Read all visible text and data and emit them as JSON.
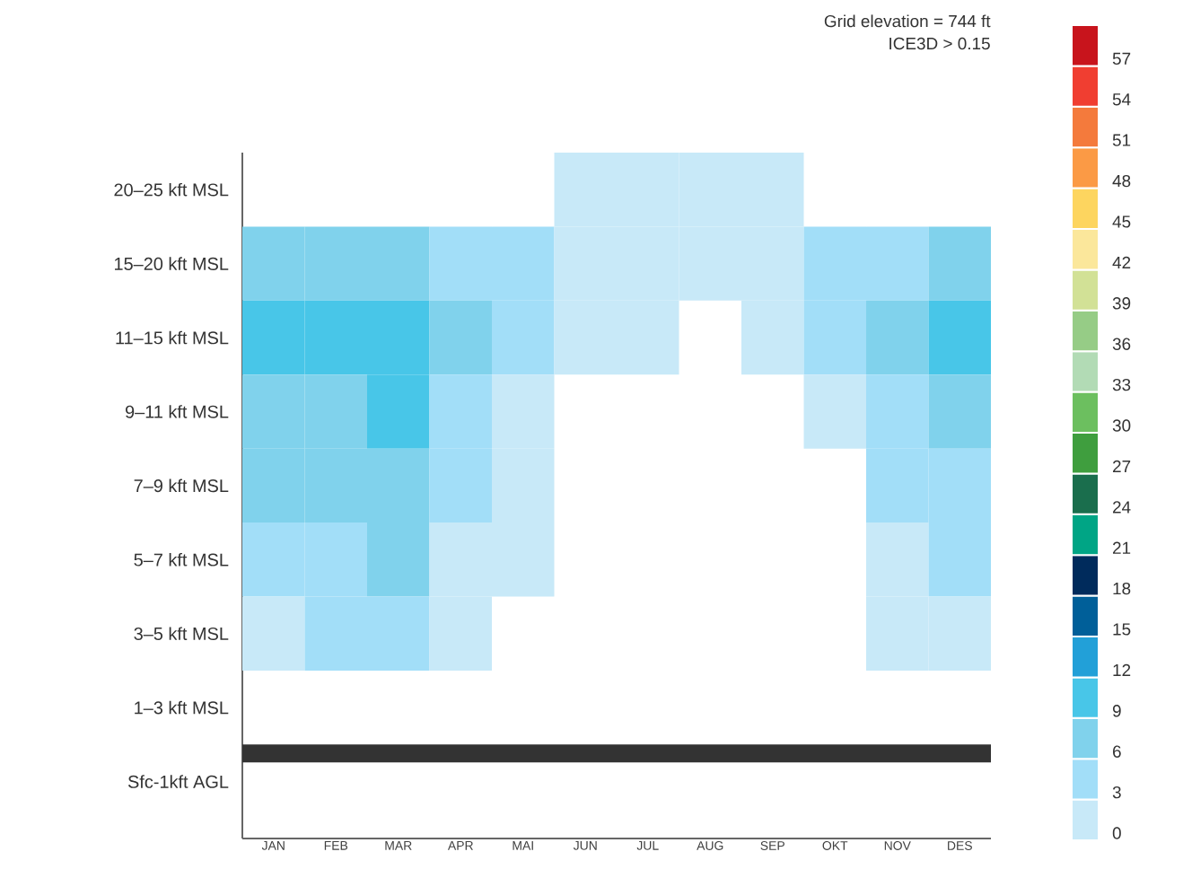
{
  "chart_data": {
    "type": "heatmap",
    "title": "Grid elevation = 744 ft",
    "subtitle": "ICE3D > 0.15",
    "categories": [
      "JAN",
      "FEB",
      "MAR",
      "APR",
      "MAI",
      "JUN",
      "JUL",
      "AUG",
      "SEP",
      "OKT",
      "NOV",
      "DES"
    ],
    "y_categories": [
      "20–25 kft MSL",
      "15–20 kft MSL",
      "11–15 kft MSL",
      "9–11 kft MSL",
      "7–9 kft MSL",
      "5–7 kft MSL",
      "3–5 kft MSL",
      "1–3 kft MSL",
      "Sfc-1kft AGL"
    ],
    "cells": [
      [
        null,
        null,
        null,
        null,
        null,
        1.5,
        1.5,
        1.5,
        1.5,
        null,
        null,
        null
      ],
      [
        7.5,
        7.5,
        7.5,
        4.5,
        4.5,
        1.5,
        1.5,
        1.5,
        1.5,
        4.5,
        4.5,
        7.5
      ],
      [
        10.5,
        10.5,
        10.5,
        7.5,
        4.5,
        1.5,
        1.5,
        null,
        1.5,
        4.5,
        7.5,
        10.5
      ],
      [
        7.5,
        7.5,
        10.5,
        4.5,
        1.5,
        null,
        null,
        null,
        null,
        1.5,
        4.5,
        7.5
      ],
      [
        7.5,
        7.5,
        7.5,
        4.5,
        1.5,
        null,
        null,
        null,
        null,
        null,
        4.5,
        4.5
      ],
      [
        4.5,
        4.5,
        7.5,
        1.5,
        1.5,
        null,
        null,
        null,
        null,
        null,
        1.5,
        4.5
      ],
      [
        1.5,
        4.5,
        4.5,
        1.5,
        null,
        null,
        null,
        null,
        null,
        null,
        1.5,
        1.5
      ],
      [
        null,
        null,
        null,
        null,
        null,
        null,
        null,
        null,
        null,
        null,
        null,
        null
      ],
      [
        null,
        null,
        null,
        null,
        null,
        null,
        null,
        null,
        null,
        null,
        null,
        null
      ]
    ],
    "clim": [
      0,
      60
    ],
    "cticks": [
      0,
      3,
      6,
      9,
      12,
      15,
      18,
      21,
      24,
      27,
      30,
      33,
      36,
      39,
      42,
      45,
      48,
      51,
      54,
      57
    ],
    "colors": [
      "#c8e9f8",
      "#a2def8",
      "#80d2ec",
      "#48c6e8",
      "#22a0d8",
      "#005f99",
      "#002b5c",
      "#00a585",
      "#1a6e4d",
      "#3f9e3e",
      "#6cbf5f",
      "#b2dbb5",
      "#96cc86",
      "#d2e196",
      "#fbe79b",
      "#fdd55f",
      "#fb9a45",
      "#f47a3c",
      "#f03e31",
      "#c8141c"
    ],
    "ref_lines": [
      {
        "axis": "y",
        "value": "Sfc-1kft AGL",
        "color": "#333333"
      }
    ]
  }
}
